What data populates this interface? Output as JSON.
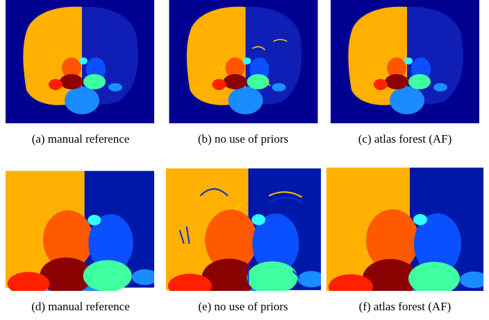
{
  "panels": [
    {
      "caption": "(a) manual reference"
    },
    {
      "caption": "(b) no use of priors"
    },
    {
      "caption": "(c) atlas forest (AF)"
    },
    {
      "caption": "(d) manual reference"
    },
    {
      "caption": "(e) no use of priors"
    },
    {
      "caption": "(f) atlas forest (AF)"
    }
  ]
}
